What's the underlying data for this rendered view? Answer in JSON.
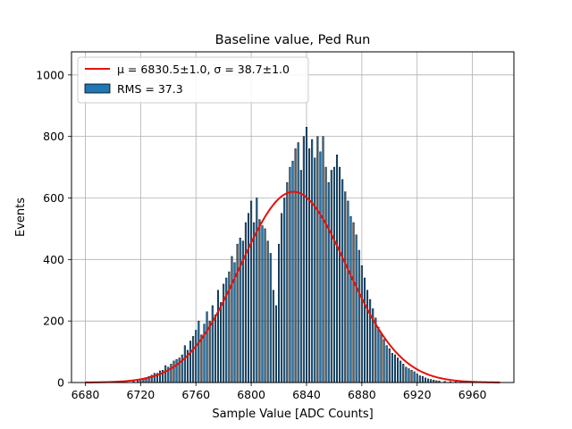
{
  "chart_data": {
    "type": "bar",
    "title": "Baseline value, Ped Run",
    "xlabel": "Sample Value [ADC Counts]",
    "ylabel": "Events",
    "xlim": [
      6670,
      6990
    ],
    "ylim": [
      0,
      1075
    ],
    "xticks": [
      6680,
      6720,
      6760,
      6800,
      6840,
      6880,
      6920,
      6960
    ],
    "yticks": [
      0,
      200,
      400,
      600,
      800,
      1000
    ],
    "grid": true,
    "legend_position": "top-left",
    "legend": {
      "fit_label_mu": "μ = 6830.5±1.0, ",
      "fit_label_sigma": "σ = 38.7±1.0",
      "hist_label": "RMS = 37.3"
    },
    "fit": {
      "mu": 6830.5,
      "sigma": 38.7,
      "amplitude": 620,
      "x_range": [
        6680,
        6980
      ],
      "color": "#e3120b"
    },
    "histogram": {
      "color": "#1f77b4",
      "edge_color": "#000000",
      "bin_width": 1,
      "bins": [
        [
          6715,
          5
        ],
        [
          6718,
          8
        ],
        [
          6720,
          10
        ],
        [
          6722,
          14
        ],
        [
          6724,
          16
        ],
        [
          6726,
          20
        ],
        [
          6728,
          24
        ],
        [
          6730,
          30
        ],
        [
          6732,
          30
        ],
        [
          6734,
          38
        ],
        [
          6736,
          40
        ],
        [
          6738,
          55
        ],
        [
          6740,
          50
        ],
        [
          6742,
          60
        ],
        [
          6744,
          70
        ],
        [
          6746,
          75
        ],
        [
          6748,
          80
        ],
        [
          6750,
          90
        ],
        [
          6752,
          120
        ],
        [
          6754,
          105
        ],
        [
          6756,
          135
        ],
        [
          6758,
          150
        ],
        [
          6760,
          170
        ],
        [
          6762,
          200
        ],
        [
          6764,
          155
        ],
        [
          6766,
          190
        ],
        [
          6768,
          230
        ],
        [
          6770,
          200
        ],
        [
          6772,
          250
        ],
        [
          6774,
          220
        ],
        [
          6776,
          300
        ],
        [
          6778,
          260
        ],
        [
          6780,
          320
        ],
        [
          6782,
          340
        ],
        [
          6784,
          360
        ],
        [
          6786,
          410
        ],
        [
          6788,
          390
        ],
        [
          6790,
          450
        ],
        [
          6792,
          470
        ],
        [
          6794,
          460
        ],
        [
          6796,
          520
        ],
        [
          6798,
          550
        ],
        [
          6800,
          590
        ],
        [
          6802,
          520
        ],
        [
          6804,
          600
        ],
        [
          6806,
          530
        ],
        [
          6808,
          510
        ],
        [
          6810,
          500
        ],
        [
          6812,
          460
        ],
        [
          6814,
          420
        ],
        [
          6816,
          300
        ],
        [
          6818,
          250
        ],
        [
          6820,
          450
        ],
        [
          6822,
          550
        ],
        [
          6824,
          600
        ],
        [
          6826,
          650
        ],
        [
          6828,
          700
        ],
        [
          6830,
          720
        ],
        [
          6832,
          760
        ],
        [
          6834,
          780
        ],
        [
          6836,
          690
        ],
        [
          6838,
          800
        ],
        [
          6840,
          830
        ],
        [
          6842,
          760
        ],
        [
          6844,
          790
        ],
        [
          6846,
          730
        ],
        [
          6848,
          800
        ],
        [
          6850,
          750
        ],
        [
          6852,
          800
        ],
        [
          6854,
          700
        ],
        [
          6856,
          650
        ],
        [
          6858,
          690
        ],
        [
          6860,
          700
        ],
        [
          6862,
          740
        ],
        [
          6864,
          700
        ],
        [
          6866,
          660
        ],
        [
          6868,
          620
        ],
        [
          6870,
          590
        ],
        [
          6872,
          540
        ],
        [
          6874,
          520
        ],
        [
          6876,
          480
        ],
        [
          6878,
          430
        ],
        [
          6880,
          380
        ],
        [
          6882,
          340
        ],
        [
          6884,
          300
        ],
        [
          6886,
          270
        ],
        [
          6888,
          240
        ],
        [
          6890,
          210
        ],
        [
          6892,
          180
        ],
        [
          6894,
          160
        ],
        [
          6896,
          140
        ],
        [
          6898,
          120
        ],
        [
          6900,
          110
        ],
        [
          6902,
          95
        ],
        [
          6904,
          90
        ],
        [
          6906,
          80
        ],
        [
          6908,
          70
        ],
        [
          6910,
          60
        ],
        [
          6912,
          50
        ],
        [
          6914,
          45
        ],
        [
          6916,
          40
        ],
        [
          6918,
          35
        ],
        [
          6920,
          28
        ],
        [
          6922,
          22
        ],
        [
          6924,
          20
        ],
        [
          6926,
          15
        ],
        [
          6928,
          12
        ],
        [
          6930,
          10
        ],
        [
          6932,
          8
        ],
        [
          6934,
          6
        ],
        [
          6936,
          5
        ],
        [
          6940,
          4
        ],
        [
          6944,
          3
        ],
        [
          6948,
          2
        ],
        [
          6952,
          2
        ],
        [
          6956,
          1
        ]
      ]
    }
  }
}
